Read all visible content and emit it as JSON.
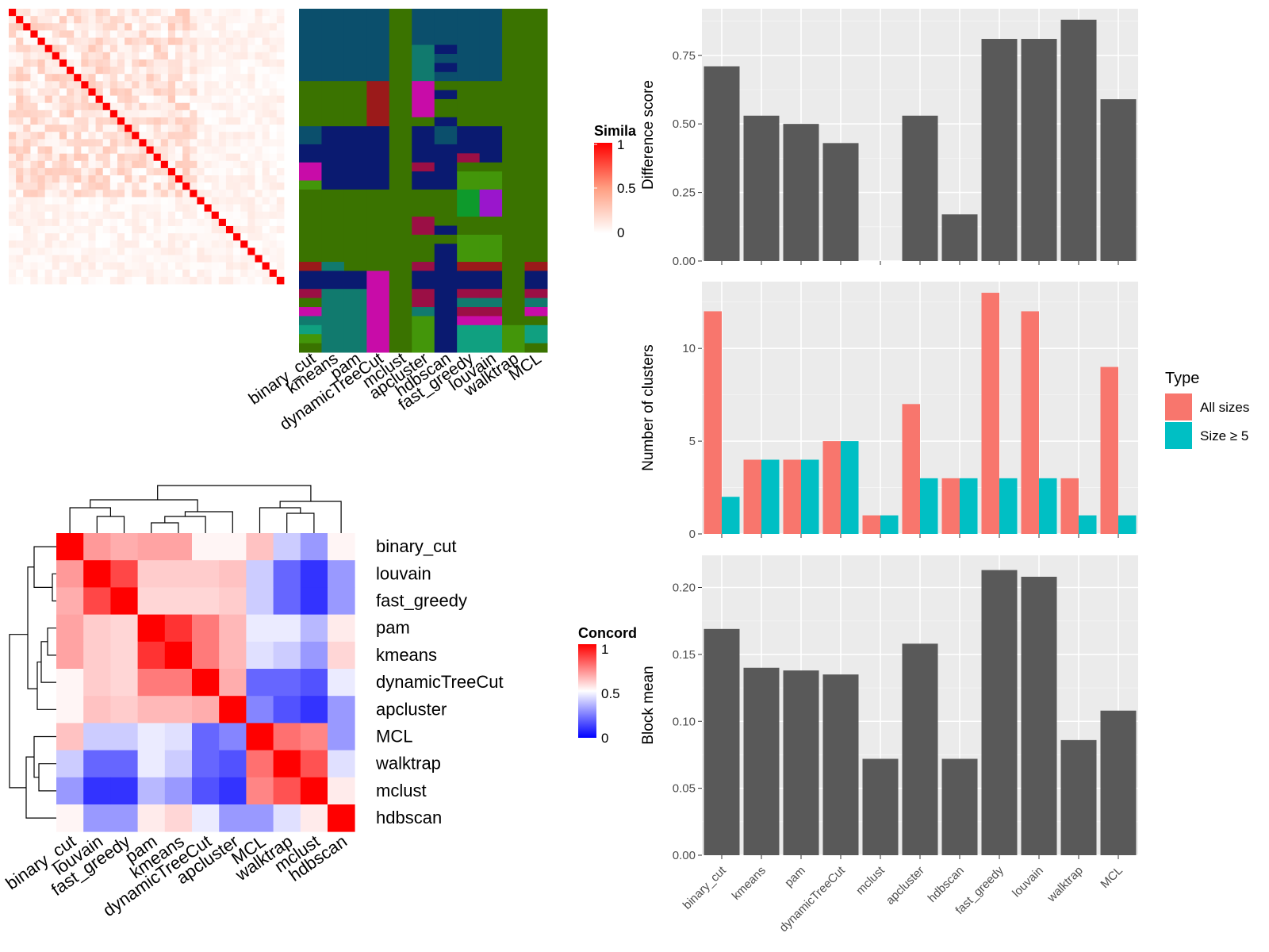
{
  "methods": [
    "binary_cut",
    "kmeans",
    "pam",
    "dynamicTreeCut",
    "mclust",
    "apcluster",
    "hdbscan",
    "fast_greedy",
    "louvain",
    "walktrap",
    "MCL"
  ],
  "similarity_heatmap": {
    "legend_title": "Simila",
    "legend_ticks": [
      "1",
      "0.5",
      "0"
    ],
    "colors": {
      "high": "#ff0000",
      "mid": "#ff9e81",
      "low": "#ffffff"
    }
  },
  "cluster_grid": {
    "palette": [
      "#0b4f6c",
      "#3a7300",
      "#0a1a70",
      "#9b1a1a",
      "#c80ca8",
      "#117a6e",
      "#9b0f45",
      "#43960a",
      "#0e9a2c",
      "#9a16cc",
      "#10a080",
      "#0d3d82"
    ]
  },
  "concordance_heatmap": {
    "legend_title": "Concord",
    "legend_ticks": [
      "1",
      "0.5",
      "0"
    ],
    "order": [
      "binary_cut",
      "louvain",
      "fast_greedy",
      "pam",
      "kmeans",
      "dynamicTreeCut",
      "apcluster",
      "MCL",
      "walktrap",
      "mclust",
      "hdbscan"
    ],
    "values": [
      [
        1.0,
        0.7,
        0.66,
        0.68,
        0.68,
        0.52,
        0.52,
        0.62,
        0.4,
        0.3,
        0.52
      ],
      [
        0.7,
        1.0,
        0.86,
        0.6,
        0.6,
        0.6,
        0.62,
        0.4,
        0.2,
        0.1,
        0.3
      ],
      [
        0.66,
        0.86,
        1.0,
        0.58,
        0.58,
        0.58,
        0.6,
        0.4,
        0.2,
        0.1,
        0.3
      ],
      [
        0.68,
        0.6,
        0.58,
        1.0,
        0.9,
        0.76,
        0.64,
        0.46,
        0.46,
        0.36,
        0.54
      ],
      [
        0.68,
        0.6,
        0.58,
        0.9,
        1.0,
        0.76,
        0.64,
        0.44,
        0.4,
        0.3,
        0.58
      ],
      [
        0.52,
        0.6,
        0.58,
        0.76,
        0.76,
        1.0,
        0.66,
        0.2,
        0.2,
        0.16,
        0.46
      ],
      [
        0.52,
        0.62,
        0.6,
        0.64,
        0.64,
        0.66,
        1.0,
        0.26,
        0.16,
        0.1,
        0.3
      ],
      [
        0.62,
        0.4,
        0.4,
        0.46,
        0.44,
        0.2,
        0.26,
        1.0,
        0.78,
        0.74,
        0.3
      ],
      [
        0.4,
        0.2,
        0.2,
        0.46,
        0.4,
        0.2,
        0.16,
        0.78,
        1.0,
        0.84,
        0.44
      ],
      [
        0.3,
        0.1,
        0.1,
        0.36,
        0.3,
        0.16,
        0.1,
        0.74,
        0.84,
        1.0,
        0.54
      ],
      [
        0.52,
        0.3,
        0.3,
        0.54,
        0.58,
        0.46,
        0.3,
        0.3,
        0.44,
        0.54,
        1.0
      ]
    ]
  },
  "chart_data": [
    {
      "type": "bar",
      "categories": [
        "binary_cut",
        "kmeans",
        "pam",
        "dynamicTreeCut",
        "mclust",
        "apcluster",
        "hdbscan",
        "fast_greedy",
        "louvain",
        "walktrap",
        "MCL"
      ],
      "values": [
        0.71,
        0.53,
        0.5,
        0.43,
        0.0,
        0.53,
        0.17,
        0.81,
        0.81,
        0.88,
        0.59
      ],
      "ylabel": "Difference score",
      "yticks": [
        "0.00",
        "0.25",
        "0.50",
        "0.75"
      ],
      "ylim": [
        0,
        0.92
      ],
      "grid": true
    },
    {
      "type": "bar",
      "categories": [
        "binary_cut",
        "kmeans",
        "pam",
        "dynamicTreeCut",
        "mclust",
        "apcluster",
        "hdbscan",
        "fast_greedy",
        "louvain",
        "walktrap",
        "MCL"
      ],
      "series": [
        {
          "name": "All sizes",
          "color": "#f8766d",
          "values": [
            12,
            4,
            4,
            5,
            1,
            7,
            3,
            13,
            12,
            3,
            9
          ]
        },
        {
          "name": "Size ≥ 5",
          "color": "#00bfc4",
          "values": [
            2,
            4,
            4,
            5,
            1,
            3,
            3,
            3,
            3,
            1,
            1
          ]
        }
      ],
      "ylabel": "Number of clusters",
      "yticks": [
        "0",
        "5",
        "10"
      ],
      "ylim": [
        0,
        13.6
      ],
      "legend_title": "Type",
      "legend_position": "right",
      "grid": true
    },
    {
      "type": "bar",
      "categories": [
        "binary_cut",
        "kmeans",
        "pam",
        "dynamicTreeCut",
        "mclust",
        "apcluster",
        "hdbscan",
        "fast_greedy",
        "louvain",
        "walktrap",
        "MCL"
      ],
      "values": [
        0.169,
        0.14,
        0.138,
        0.135,
        0.072,
        0.158,
        0.072,
        0.213,
        0.208,
        0.086,
        0.108
      ],
      "ylabel": "Block mean",
      "yticks": [
        "0.00",
        "0.05",
        "0.10",
        "0.15",
        "0.20"
      ],
      "ylim": [
        0,
        0.224
      ],
      "grid": true
    }
  ]
}
